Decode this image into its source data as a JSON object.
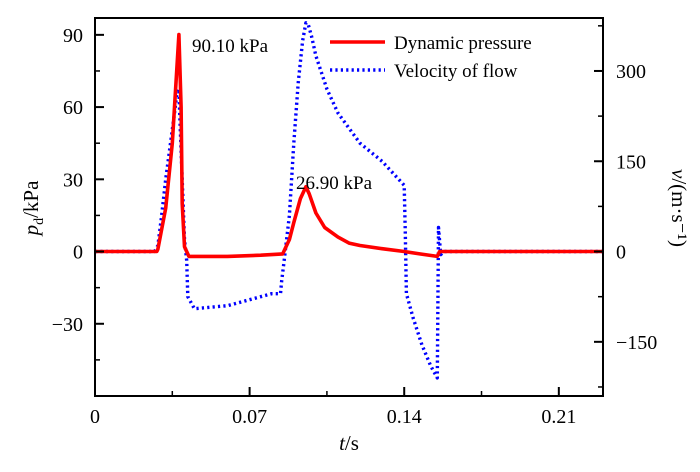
{
  "chart_data": {
    "type": "line",
    "xlabel": "t/s",
    "ylabel_left": "pd/kPa",
    "ylabel_right": "v/(m·s⁻¹)",
    "xlim": [
      0,
      0.23
    ],
    "ylim_left": [
      -60,
      97
    ],
    "ylim_right": [
      -240,
      388
    ],
    "x_ticks": [
      0,
      0.07,
      0.14,
      0.21
    ],
    "x_tick_labels": [
      "0",
      "0.07",
      "0.14",
      "0.21"
    ],
    "y_left_ticks": [
      -30,
      0,
      30,
      60,
      90
    ],
    "y_left_tick_labels": [
      "−30",
      "0",
      "30",
      "60",
      "90"
    ],
    "y_right_ticks": [
      -150,
      0,
      150,
      300
    ],
    "y_right_tick_labels": [
      "−150",
      "0",
      "150",
      "300"
    ],
    "legend": {
      "placement": "top-right"
    },
    "grid": false,
    "series": [
      {
        "name": "Dynamic pressure",
        "axis": "left",
        "color": "#ff0000",
        "style": "solid",
        "x": [
          0,
          0.028,
          0.0285,
          0.032,
          0.035,
          0.037,
          0.038,
          0.039,
          0.0395,
          0.0405,
          0.0425,
          0.045,
          0.06,
          0.075,
          0.085,
          0.088,
          0.09,
          0.093,
          0.0955,
          0.097,
          0.1,
          0.104,
          0.11,
          0.115,
          0.12,
          0.13,
          0.14,
          0.147,
          0.155,
          0.156,
          0.2,
          0.23
        ],
        "y": [
          0,
          0,
          1,
          18,
          45,
          75,
          90.1,
          60,
          20,
          2,
          -2,
          -2,
          -2,
          -1.5,
          -1,
          5,
          12,
          22,
          26.9,
          24,
          16,
          10,
          6,
          3.5,
          2.5,
          1.2,
          0,
          -1,
          -2,
          0,
          0,
          0
        ]
      },
      {
        "name": "Velocity of flow",
        "axis": "right",
        "color": "#0000ff",
        "style": "dotted",
        "x": [
          0,
          0.027,
          0.0285,
          0.03,
          0.032,
          0.034,
          0.036,
          0.037,
          0.038,
          0.0385,
          0.0395,
          0.0405,
          0.0415,
          0.042,
          0.045,
          0.06,
          0.07,
          0.075,
          0.08,
          0.084,
          0.0845,
          0.0855,
          0.088,
          0.09,
          0.092,
          0.094,
          0.0955,
          0.0965,
          0.098,
          0.1,
          0.105,
          0.11,
          0.12,
          0.13,
          0.14,
          0.1405,
          0.141,
          0.144,
          0.148,
          0.152,
          0.155,
          0.1555,
          0.1565,
          0.158,
          0.2,
          0.23
        ],
        "y": [
          0,
          0,
          10,
          55,
          120,
          175,
          230,
          260,
          270,
          215,
          120,
          20,
          -15,
          -75,
          -95,
          -90,
          -80,
          -75,
          -70,
          -70,
          -50,
          -20,
          60,
          180,
          280,
          350,
          380,
          378,
          358,
          325,
          270,
          230,
          180,
          150,
          110,
          30,
          -70,
          -110,
          -155,
          -190,
          -210,
          40,
          -5,
          0,
          0,
          0
        ]
      }
    ],
    "annotations": [
      {
        "text": "90.10 kPa"
      },
      {
        "text": "26.90 kPa"
      }
    ]
  }
}
